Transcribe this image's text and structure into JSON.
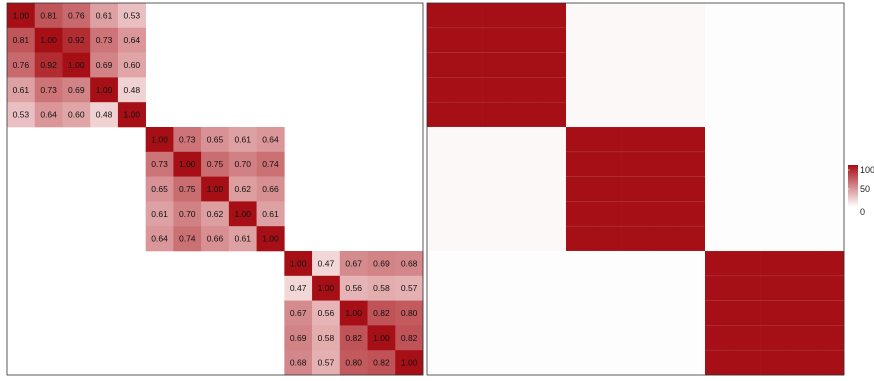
{
  "chart_data": [
    {
      "type": "heatmap",
      "title": "",
      "xlabel": "",
      "ylabel": "",
      "cell_labels": true,
      "blocks": [
        {
          "size": 5,
          "values": [
            [
              1.0,
              0.81,
              0.76,
              0.61,
              0.53
            ],
            [
              0.81,
              1.0,
              0.92,
              0.73,
              0.64
            ],
            [
              0.76,
              0.92,
              1.0,
              0.69,
              0.6
            ],
            [
              0.61,
              0.73,
              0.69,
              1.0,
              0.48
            ],
            [
              0.53,
              0.64,
              0.6,
              0.48,
              1.0
            ]
          ]
        },
        {
          "size": 5,
          "values": [
            [
              1.0,
              0.73,
              0.65,
              0.61,
              0.64
            ],
            [
              0.73,
              1.0,
              0.75,
              0.7,
              0.74
            ],
            [
              0.65,
              0.75,
              1.0,
              0.62,
              0.66
            ],
            [
              0.61,
              0.7,
              0.62,
              1.0,
              0.61
            ],
            [
              0.64,
              0.74,
              0.66,
              0.61,
              1.0
            ]
          ]
        },
        {
          "size": 5,
          "values": [
            [
              1.0,
              0.47,
              0.67,
              0.69,
              0.68
            ],
            [
              0.47,
              1.0,
              0.56,
              0.58,
              0.57
            ],
            [
              0.67,
              0.56,
              1.0,
              0.82,
              0.8
            ],
            [
              0.69,
              0.58,
              0.82,
              1.0,
              0.82
            ],
            [
              0.68,
              0.57,
              0.8,
              0.82,
              1.0
            ]
          ]
        }
      ],
      "color_scale": {
        "min": 0.4,
        "max": 1.0,
        "low": "#fdf0f0",
        "high": "#a50f15"
      }
    },
    {
      "type": "heatmap",
      "title": "",
      "xlabel": "",
      "ylabel": "",
      "cell_labels": false,
      "n": 15,
      "groups": [
        5,
        5,
        5
      ],
      "in_block_value": 100,
      "off_block_values": [
        [
          100,
          3,
          1
        ],
        [
          3,
          100,
          1
        ],
        [
          1,
          1,
          100
        ]
      ],
      "color_scale": {
        "min": 0,
        "max": 100,
        "low": "#ffffff",
        "high": "#a50f15"
      },
      "legend": {
        "position": "right",
        "ticks": [
          "100",
          "50",
          "0"
        ]
      }
    }
  ]
}
